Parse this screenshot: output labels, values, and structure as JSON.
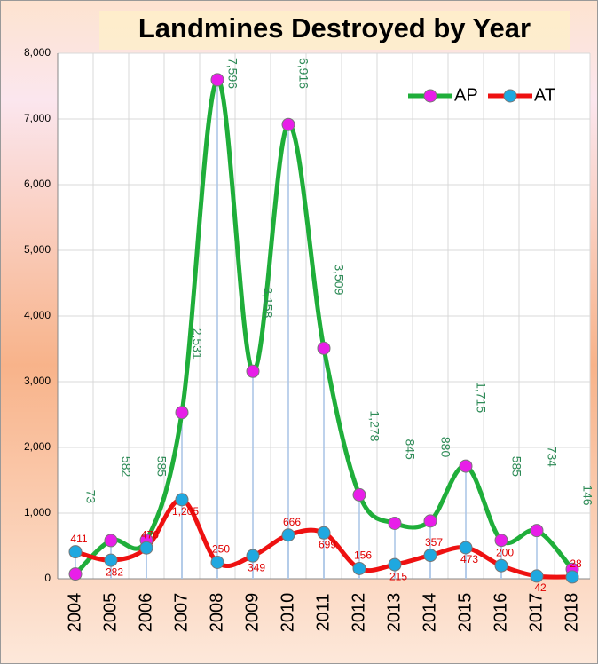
{
  "chart_data": {
    "type": "line",
    "title": "Landmines Destroyed by Year",
    "categories": [
      "2004",
      "2005",
      "2006",
      "2007",
      "2008",
      "2009",
      "2010",
      "2011",
      "2012",
      "2013",
      "2014",
      "2015",
      "2016",
      "2017",
      "2018"
    ],
    "series": [
      {
        "name": "AP",
        "color": "#1fae3a",
        "marker_color": "#e81ee8",
        "values": [
          73,
          582,
          585,
          2531,
          7596,
          3158,
          6916,
          3509,
          1278,
          845,
          880,
          1715,
          585,
          734,
          146
        ],
        "value_labels": [
          "73",
          "582",
          "585",
          "2,531",
          "7,596",
          "3,158",
          "6,916",
          "3,509",
          "1,278",
          "845",
          "880",
          "1,715",
          "585",
          "734",
          "146"
        ]
      },
      {
        "name": "AT",
        "color": "#ee1111",
        "marker_color": "#1fa8e0",
        "values": [
          411,
          282,
          470,
          1205,
          250,
          349,
          666,
          699,
          156,
          215,
          357,
          473,
          200,
          42,
          28
        ],
        "value_labels": [
          "411",
          "282",
          "470",
          "1,205",
          "250",
          "349",
          "666",
          "699",
          "156",
          "215",
          "357",
          "473",
          "200",
          "42",
          "28"
        ]
      }
    ],
    "ylim": [
      0,
      8000
    ],
    "yticks": [
      0,
      {
        "value": 1000,
        "label": "1,000"
      },
      {
        "value": 2000,
        "label": "2,000"
      },
      {
        "value": 3000,
        "label": "3,000"
      },
      {
        "value": 4000,
        "label": "4,000"
      },
      {
        "value": 5000,
        "label": "5,000"
      },
      {
        "value": 6000,
        "label": "6,000"
      },
      {
        "value": 7000,
        "label": "7,000"
      },
      {
        "value": 8000,
        "label": "8,000"
      }
    ],
    "grid": true,
    "legend": "top-right"
  }
}
